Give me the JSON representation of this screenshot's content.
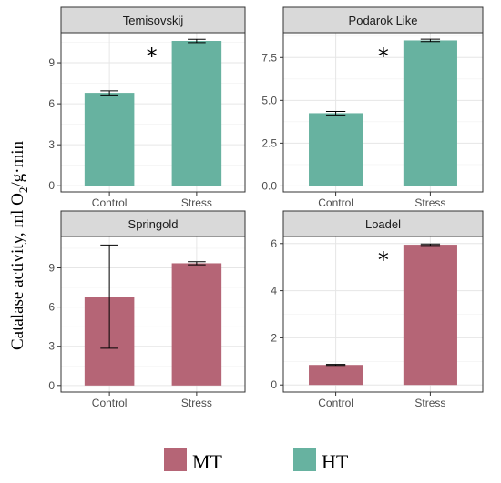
{
  "chart_data": [
    {
      "type": "bar",
      "title": "Temisovskij",
      "group": "HT",
      "categories": [
        "Control",
        "Stress"
      ],
      "values": [
        6.8,
        10.6
      ],
      "errors": [
        0.15,
        0.12
      ],
      "yticks": [
        0,
        3,
        6,
        9
      ],
      "ylim": [
        -0.45,
        11.2
      ],
      "significance": [
        "",
        "*"
      ]
    },
    {
      "type": "bar",
      "title": "Podarok Like",
      "group": "HT",
      "categories": [
        "Control",
        "Stress"
      ],
      "values": [
        4.25,
        8.5
      ],
      "errors": [
        0.1,
        0.07
      ],
      "ytick_labels": [
        "0.0",
        "2.5",
        "5.0",
        "7.5"
      ],
      "yticks": [
        0,
        2.5,
        5,
        7.5
      ],
      "ylim": [
        -0.35,
        8.95
      ],
      "significance": [
        "",
        "*"
      ]
    },
    {
      "type": "bar",
      "title": "Springold",
      "group": "MT",
      "categories": [
        "Control",
        "Stress"
      ],
      "values": [
        6.8,
        9.35
      ],
      "errors": [
        3.95,
        0.12
      ],
      "yticks": [
        0,
        3,
        6,
        9
      ],
      "ylim": [
        -0.5,
        11.4
      ],
      "significance": [
        "",
        ""
      ]
    },
    {
      "type": "bar",
      "title": "Loadel",
      "group": "MT",
      "categories": [
        "Control",
        "Stress"
      ],
      "values": [
        0.85,
        5.95
      ],
      "errors": [
        0.02,
        0.03
      ],
      "yticks": [
        0,
        2,
        4,
        6
      ],
      "ylim": [
        -0.3,
        6.3
      ],
      "significance": [
        "",
        "*"
      ]
    }
  ],
  "ylabel_main": "Catalase activity, ml O",
  "ylabel_sub": "2",
  "ylabel_tail": "/g·min",
  "legend": [
    {
      "label": "MT",
      "color": "#b56576"
    },
    {
      "label": "HT",
      "color": "#67b2a0"
    }
  ],
  "colors": {
    "HT": "#67b2a0",
    "MT": "#b56576"
  },
  "grid": true,
  "legend_position": "bottom"
}
